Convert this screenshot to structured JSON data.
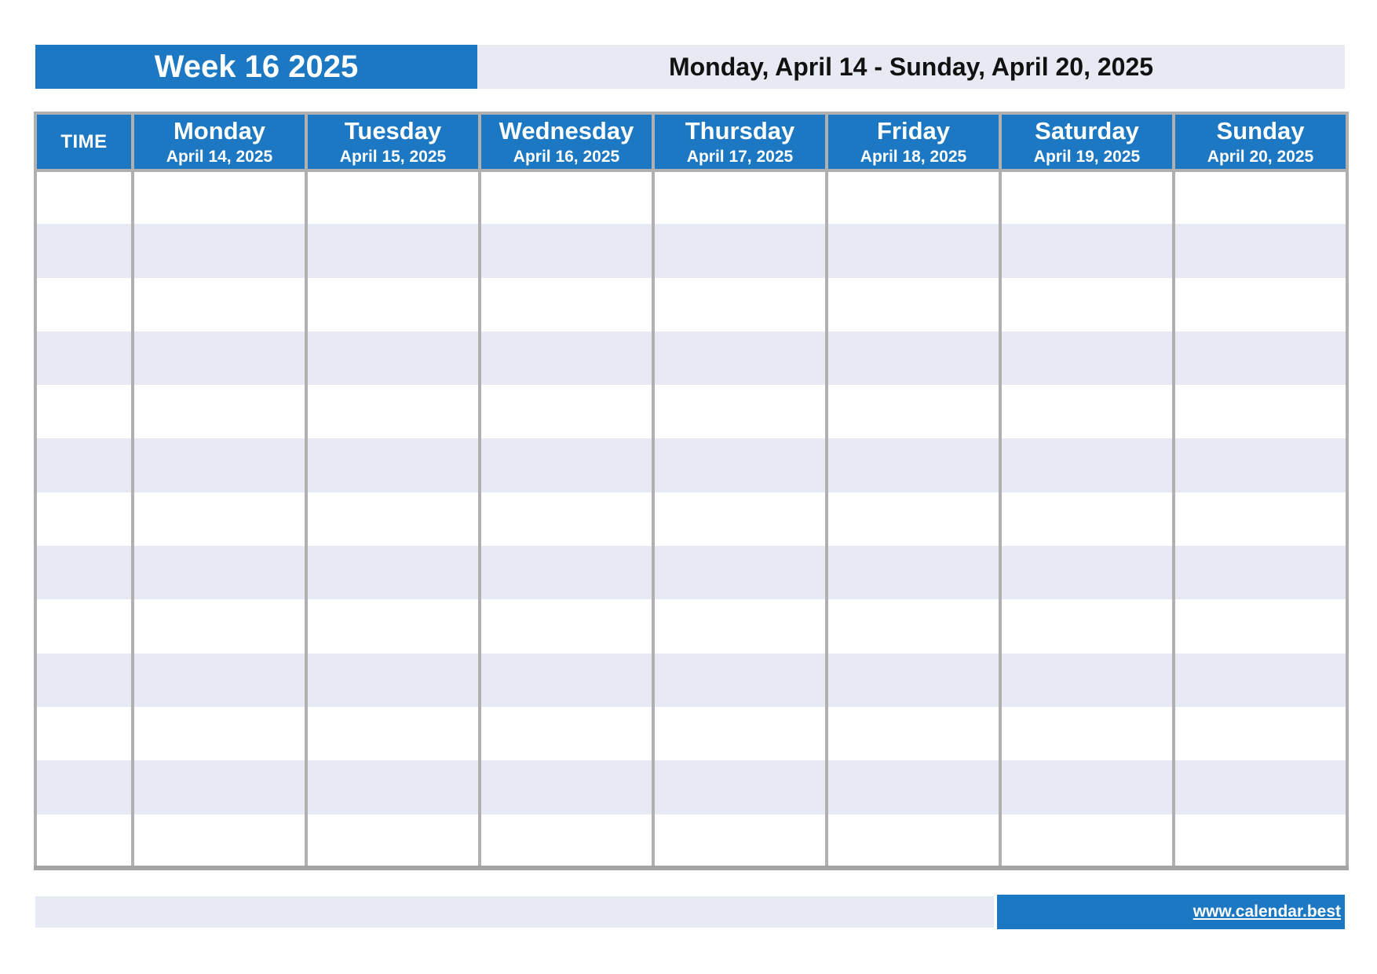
{
  "header": {
    "week_title": "Week 16 2025",
    "date_range": "Monday, April 14 - Sunday, April 20, 2025"
  },
  "table": {
    "time_header": "TIME",
    "days": [
      {
        "name": "Monday",
        "date": "April 14, 2025"
      },
      {
        "name": "Tuesday",
        "date": "April 15, 2025"
      },
      {
        "name": "Wednesday",
        "date": "April 16, 2025"
      },
      {
        "name": "Thursday",
        "date": "April 17, 2025"
      },
      {
        "name": "Friday",
        "date": "April 18, 2025"
      },
      {
        "name": "Saturday",
        "date": "April 19, 2025"
      },
      {
        "name": "Sunday",
        "date": "April 20, 2025"
      }
    ],
    "body_rows": 13
  },
  "footer": {
    "link": "www.calendar.best"
  },
  "colors": {
    "primary_blue": "#1c78c3",
    "band_lavender": "#e8eaf3",
    "stripe_lavender": "#e7eaf5",
    "border_inner": "#b0b0b0",
    "border_outer": "#a4a4a4",
    "header_text": "#ffffff",
    "title_text": "#111111"
  }
}
